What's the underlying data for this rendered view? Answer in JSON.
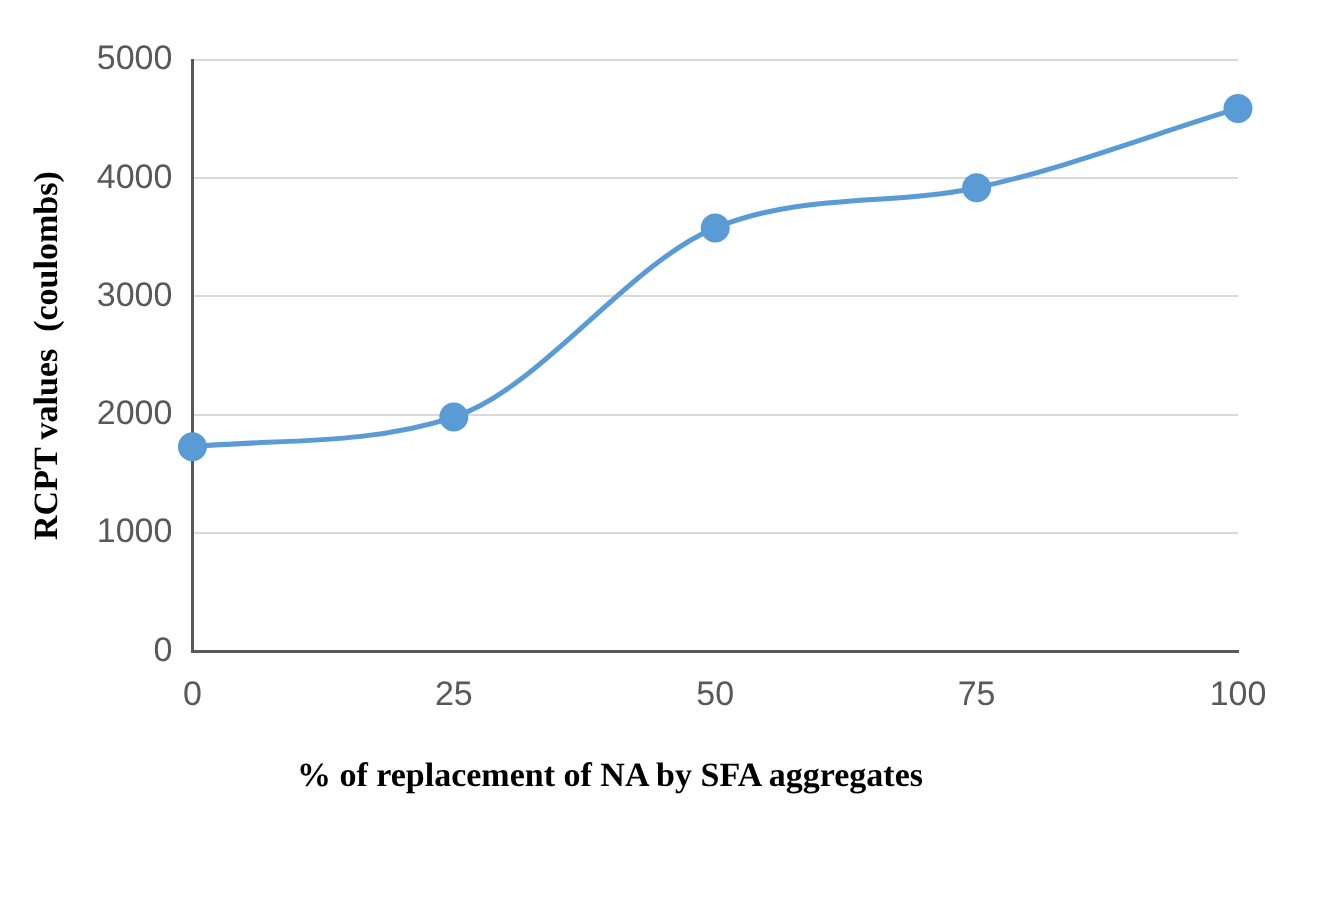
{
  "chart_data": {
    "type": "line",
    "xlabel": "% of replacement of NA by SFA aggregates",
    "ylabel": "RCPT values  (coulombs)",
    "categories": [
      "0",
      "25",
      "50",
      "75",
      "100"
    ],
    "series": [
      {
        "color": "#5b9bd5",
        "values": [
          1730,
          1980,
          3580,
          3920,
          4590
        ]
      }
    ],
    "ylim": [
      0,
      5000
    ],
    "yticks": [
      0,
      1000,
      2000,
      3000,
      4000,
      5000
    ],
    "grid": "y",
    "legend": false,
    "marker": "circle",
    "line_style": "solid"
  }
}
